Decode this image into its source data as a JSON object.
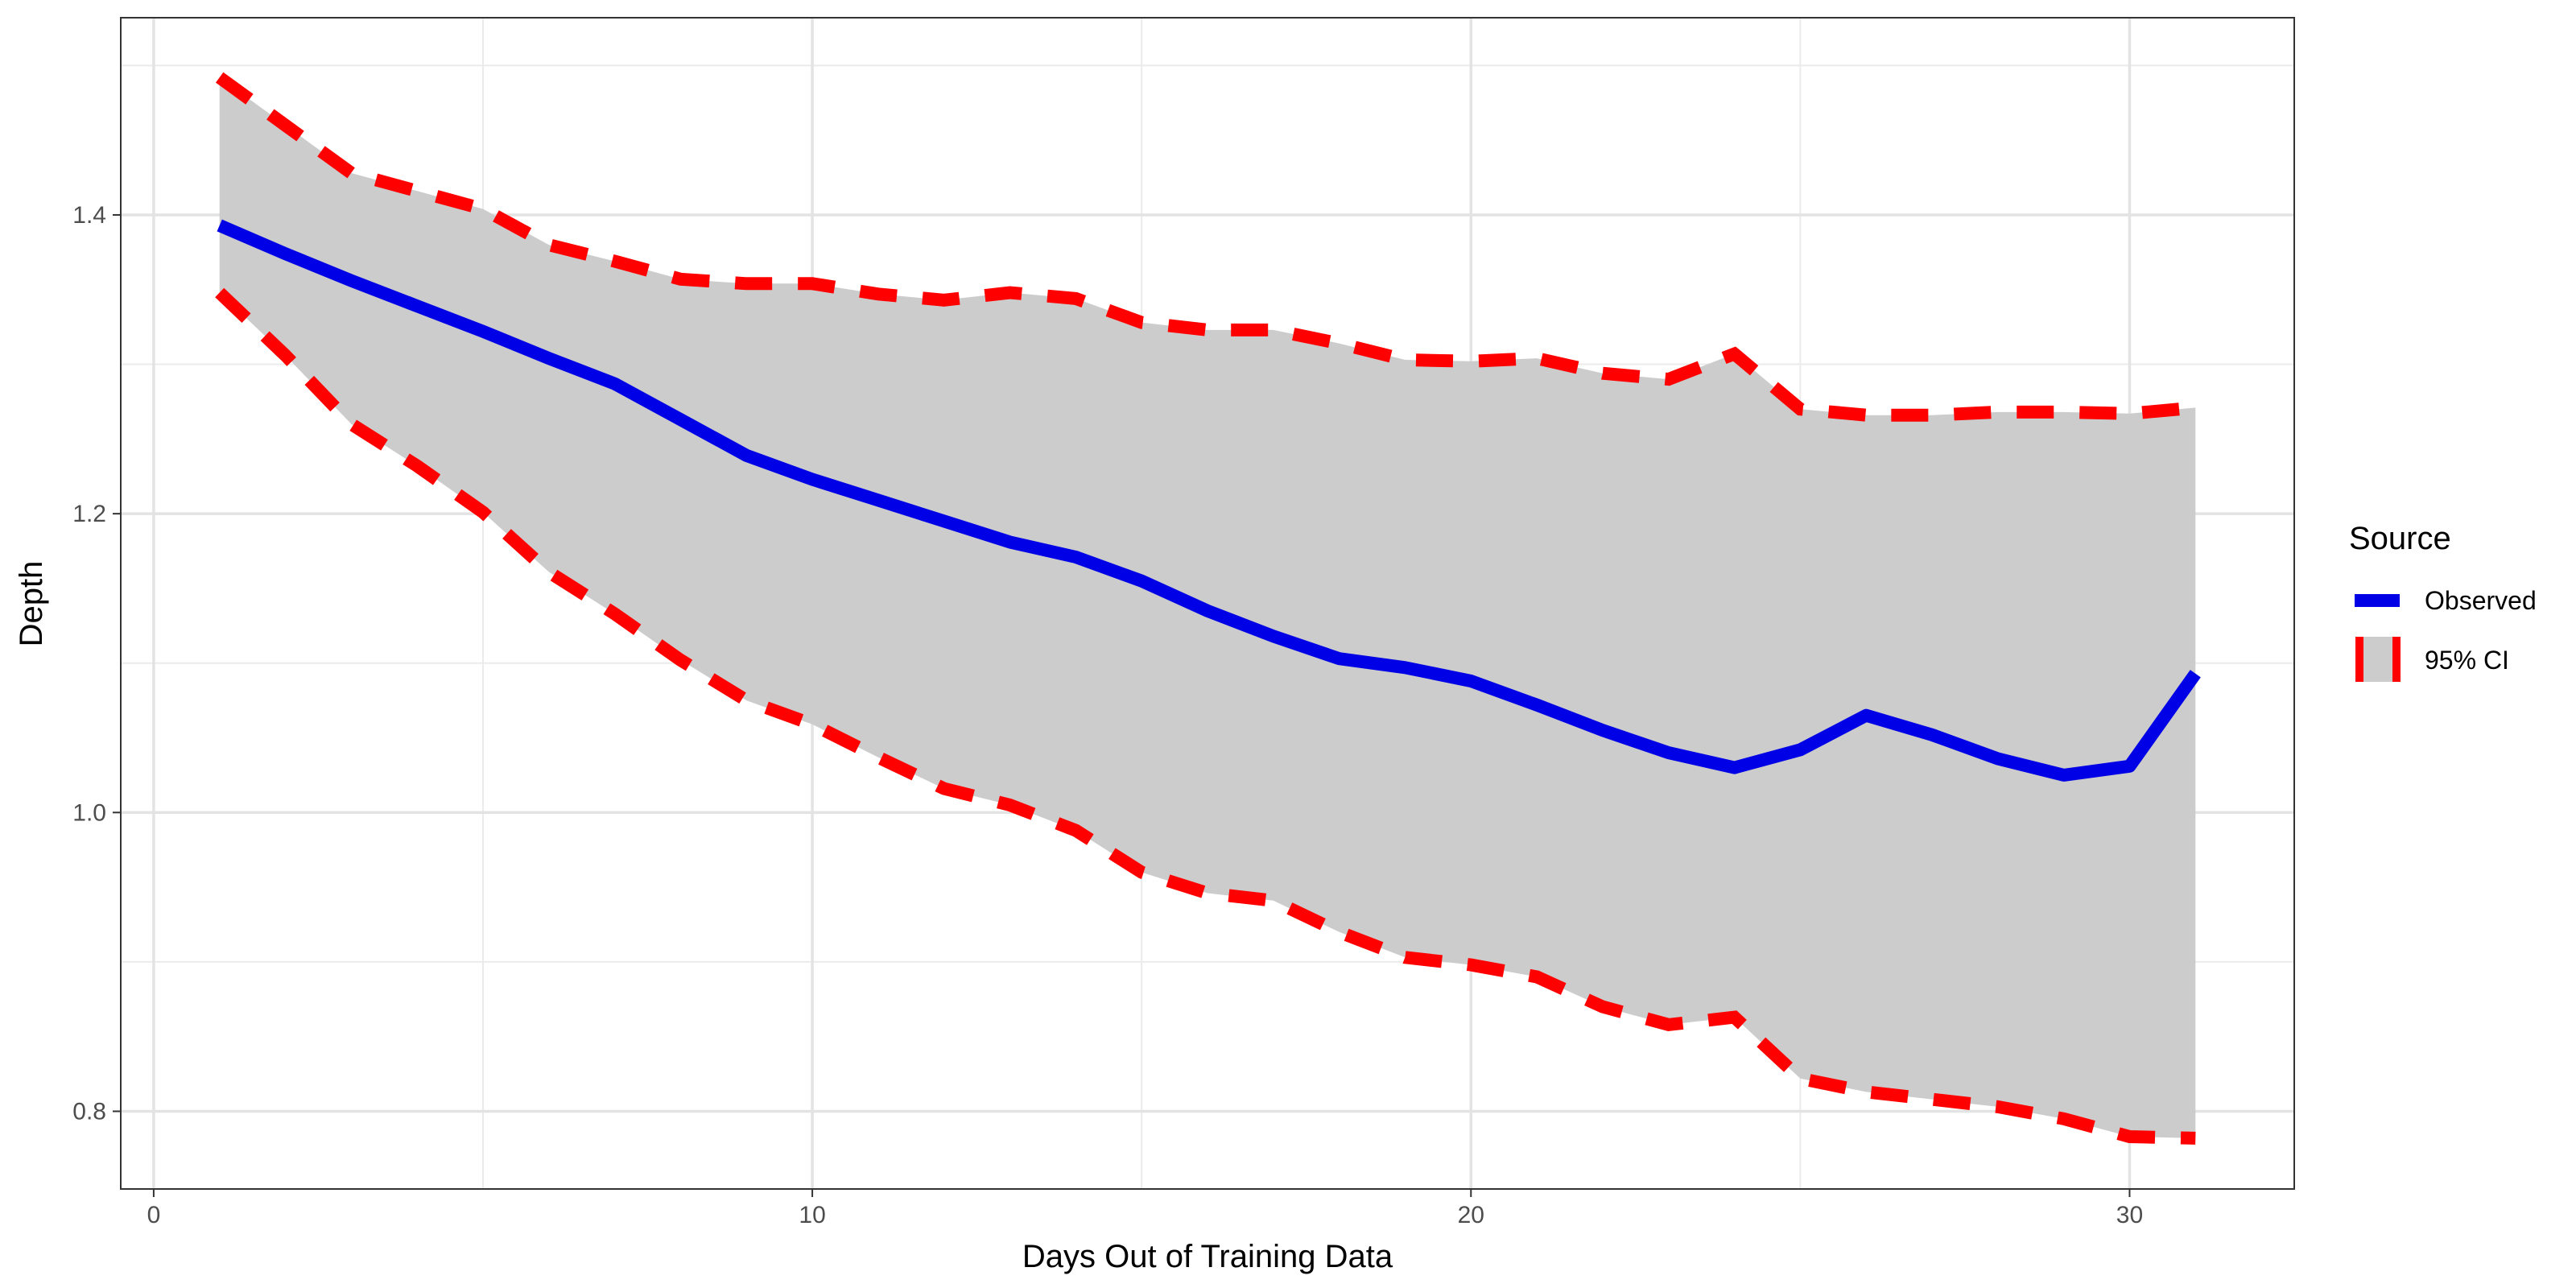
{
  "chart_data": {
    "type": "line",
    "title": "",
    "xlabel": "Days Out of Training Data",
    "ylabel": "Depth",
    "xlim": [
      -0.5,
      32.5
    ],
    "ylim": [
      0.748,
      1.532
    ],
    "x_ticks": [
      0,
      10,
      20,
      30
    ],
    "y_ticks": [
      0.8,
      1.0,
      1.2,
      1.4
    ],
    "x_tick_labels": [
      "0",
      "10",
      "20",
      "30"
    ],
    "y_tick_labels": [
      "0.8",
      "1.0",
      "1.2",
      "1.4"
    ],
    "grid": true,
    "legend": {
      "title": "Source",
      "position": "right",
      "entries": [
        "Observed",
        "95% CI"
      ]
    },
    "x": [
      1,
      2,
      3,
      4,
      5,
      6,
      7,
      8,
      9,
      10,
      11,
      12,
      13,
      14,
      15,
      16,
      17,
      18,
      19,
      20,
      21,
      22,
      23,
      24,
      25,
      26,
      27,
      28,
      29,
      30,
      31
    ],
    "series": [
      {
        "name": "Observed",
        "color": "#0000e6",
        "style": "solid",
        "values": [
          1.393,
          1.374,
          1.356,
          1.339,
          1.322,
          1.304,
          1.287,
          1.263,
          1.239,
          1.223,
          1.209,
          1.195,
          1.181,
          1.171,
          1.155,
          1.135,
          1.118,
          1.103,
          1.097,
          1.088,
          1.072,
          1.055,
          1.04,
          1.03,
          1.042,
          1.065,
          1.052,
          1.036,
          1.025,
          1.031,
          1.093
        ]
      }
    ],
    "ci": {
      "name": "95% CI",
      "color": "#ff0000",
      "fill": "#cccccc",
      "style": "dashed",
      "upper": [
        1.492,
        1.46,
        1.428,
        1.416,
        1.404,
        1.38,
        1.369,
        1.357,
        1.354,
        1.354,
        1.347,
        1.343,
        1.348,
        1.344,
        1.328,
        1.323,
        1.323,
        1.314,
        1.303,
        1.302,
        1.304,
        1.294,
        1.29,
        1.307,
        1.27,
        1.266,
        1.266,
        1.268,
        1.268,
        1.267,
        1.271
      ],
      "lower": [
        1.348,
        1.306,
        1.26,
        1.232,
        1.201,
        1.161,
        1.133,
        1.102,
        1.075,
        1.059,
        1.037,
        1.016,
        1.005,
        0.988,
        0.96,
        0.946,
        0.941,
        0.92,
        0.903,
        0.898,
        0.89,
        0.87,
        0.858,
        0.863,
        0.822,
        0.813,
        0.808,
        0.803,
        0.795,
        0.783,
        0.782
      ]
    }
  }
}
